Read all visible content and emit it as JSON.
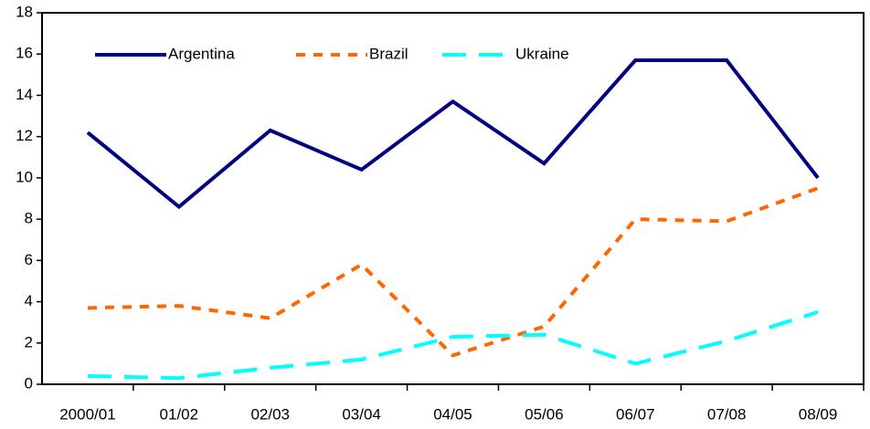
{
  "chart_data": {
    "type": "line",
    "categories": [
      "2000/01",
      "01/02",
      "02/03",
      "03/04",
      "04/05",
      "05/06",
      "06/07",
      "07/08",
      "08/09"
    ],
    "series": [
      {
        "name": "Argentina",
        "color": "#000080",
        "dash": "solid",
        "values": [
          12.2,
          8.6,
          12.3,
          10.4,
          13.7,
          10.7,
          15.7,
          15.7,
          10.0
        ]
      },
      {
        "name": "Brazil",
        "color": "#ff6600",
        "dash": "dotted",
        "values": [
          3.7,
          3.8,
          3.2,
          5.8,
          1.4,
          2.8,
          8.0,
          7.9,
          9.5
        ]
      },
      {
        "name": "Ukraine",
        "color": "#00ffff",
        "dash": "dashed",
        "values": [
          0.4,
          0.3,
          0.8,
          1.2,
          2.3,
          2.4,
          1.0,
          2.1,
          3.5
        ]
      }
    ],
    "ylim": [
      0,
      18
    ],
    "yticks": [
      0,
      2,
      4,
      6,
      8,
      10,
      12,
      14,
      16,
      18
    ],
    "grid": false,
    "legend": "upper left"
  }
}
